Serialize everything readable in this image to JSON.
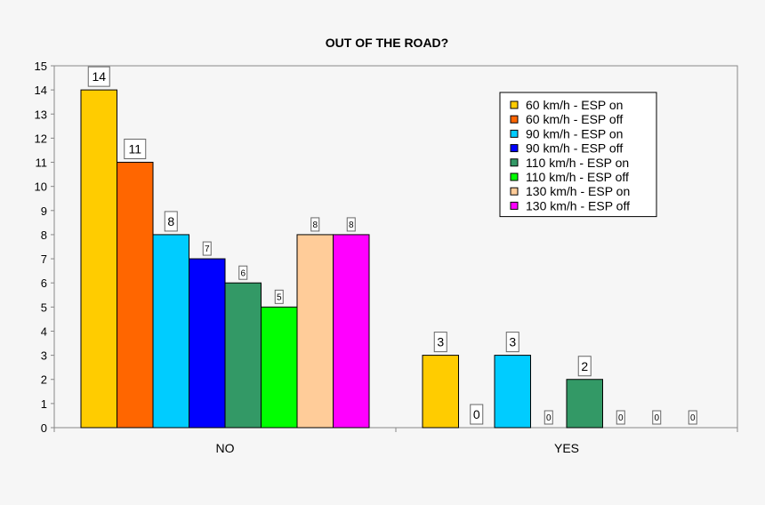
{
  "chart_data": {
    "type": "bar",
    "title": "OUT OF THE ROAD?",
    "xlabel": "",
    "ylabel": "",
    "categories": [
      "NO",
      "YES"
    ],
    "ylim": [
      0,
      15
    ],
    "yticks": [
      0,
      1,
      2,
      3,
      4,
      5,
      6,
      7,
      8,
      9,
      10,
      11,
      12,
      13,
      14,
      15
    ],
    "grid": false,
    "legend_position": "top-right",
    "series": [
      {
        "name": "60 km/h - ESP on",
        "color": "#ffcc00",
        "values": [
          14,
          3
        ]
      },
      {
        "name": "60 km/h - ESP off",
        "color": "#ff6600",
        "values": [
          11,
          0
        ]
      },
      {
        "name": "90 km/h - ESP on",
        "color": "#00ccff",
        "values": [
          8,
          3
        ]
      },
      {
        "name": "90 km/h - ESP off",
        "color": "#0000ff",
        "values": [
          7,
          0
        ]
      },
      {
        "name": "110 km/h - ESP on",
        "color": "#339966",
        "values": [
          6,
          2
        ]
      },
      {
        "name": "110 km/h - ESP off",
        "color": "#00ff00",
        "values": [
          5,
          0
        ]
      },
      {
        "name": "130 km/h - ESP on",
        "color": "#ffcc99",
        "values": [
          8,
          0
        ]
      },
      {
        "name": "130 km/h - ESP off",
        "color": "#ff00ff",
        "values": [
          8,
          0
        ]
      }
    ]
  }
}
